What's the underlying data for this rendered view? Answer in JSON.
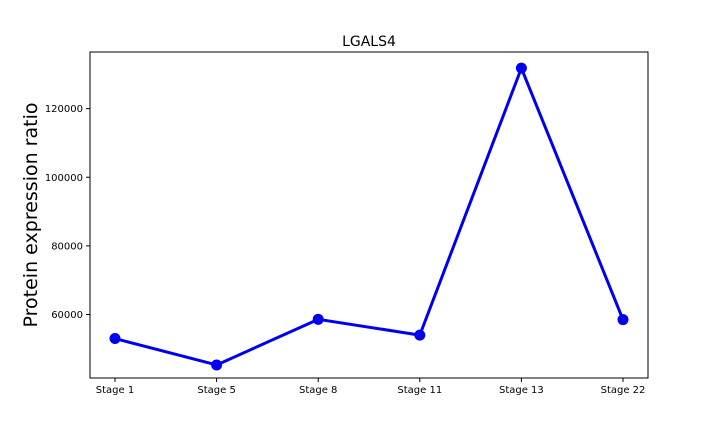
{
  "chart_data": {
    "type": "line",
    "title": "LGALS4",
    "xlabel": "",
    "ylabel": "Protein expression ratio",
    "categories": [
      "Stage 1",
      "Stage 5",
      "Stage 8",
      "Stage 11",
      "Stage 13",
      "Stage 22"
    ],
    "series": [
      {
        "values": [
          53000,
          45300,
          58600,
          54000,
          131800,
          58500
        ],
        "color": "#0000ee"
      }
    ],
    "ylim": [
      41500,
      136500
    ],
    "yticks": [
      60000,
      80000,
      100000,
      120000
    ],
    "ytick_labels": [
      "60000",
      "80000",
      "100000",
      "120000"
    ],
    "grid": false
  }
}
